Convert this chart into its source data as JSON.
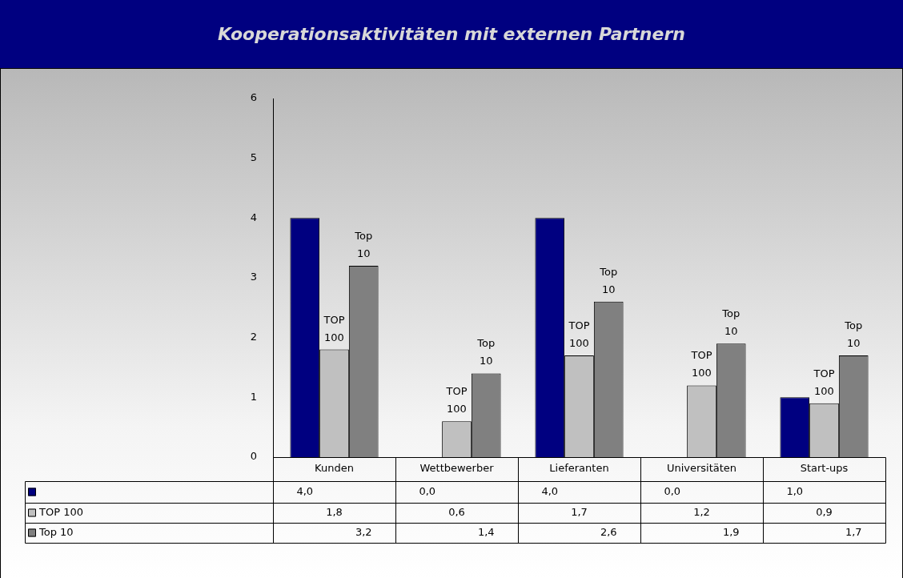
{
  "chart_data": {
    "type": "bar",
    "title": "Kooperationsaktivitäten mit externen Partnern",
    "categories": [
      "Kunden",
      "Wettbewerber",
      "Lieferanten",
      "Universitäten",
      "Start-ups"
    ],
    "series": [
      {
        "color": "#000080",
        "values": [
          4.0,
          0.0,
          4.0,
          0.0,
          1.0
        ],
        "value_labels": [
          "4,0",
          "0,0",
          "4,0",
          "0,0",
          "1,0"
        ]
      },
      {
        "name": "TOP 100",
        "color": "#c0c0c0",
        "values": [
          1.8,
          0.6,
          1.7,
          1.2,
          0.9
        ],
        "value_labels": [
          "1,8",
          "0,6",
          "1,7",
          "1,2",
          "0,9"
        ]
      },
      {
        "name": "Top 10",
        "color": "#808080",
        "values": [
          3.2,
          1.4,
          2.6,
          1.9,
          1.7
        ],
        "value_labels": [
          "3,2",
          "1,4",
          "2,6",
          "1,9",
          "1,7"
        ]
      }
    ],
    "ylim": [
      0,
      6
    ],
    "yticks": [
      0,
      1,
      2,
      3,
      4,
      5,
      6
    ],
    "grid": false,
    "legend": "bottom left"
  }
}
